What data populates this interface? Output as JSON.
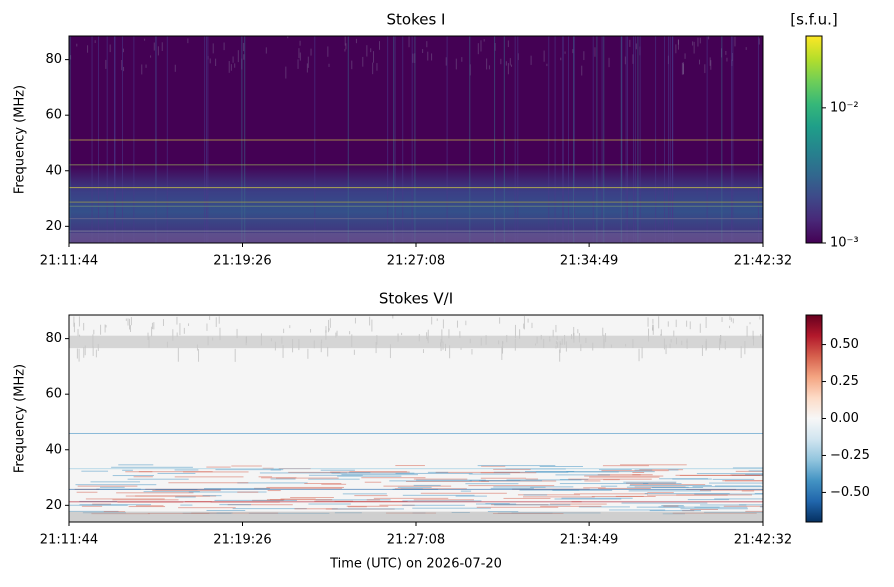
{
  "chart_data": [
    {
      "type": "heatmap",
      "title": "Stokes I",
      "ylabel": "Frequency (MHz)",
      "xlim": [
        76304,
        78152
      ],
      "xticks": [
        {
          "value": 76304,
          "label": "21:11:44"
        },
        {
          "value": 76766,
          "label": "21:19:26"
        },
        {
          "value": 77228,
          "label": "21:27:08"
        },
        {
          "value": 77689,
          "label": "21:34:49"
        },
        {
          "value": 78152,
          "label": "21:42:32"
        }
      ],
      "ylim": [
        14,
        88.5
      ],
      "yticks": [
        20,
        40,
        60,
        80
      ],
      "colorbar": {
        "label": "[s.f.u.]",
        "cmap": "viridis",
        "log": true,
        "clim": [
          0.001,
          0.034
        ],
        "ticks": [
          {
            "value": 0.001,
            "label": "10⁻³"
          },
          {
            "value": 0.01,
            "label": "10⁻²"
          }
        ]
      }
    },
    {
      "type": "heatmap",
      "title": "Stokes V/I",
      "ylabel": "Frequency (MHz)",
      "xlabel": "Time (UTC) on 2026-07-20",
      "xlim": [
        76304,
        78152
      ],
      "xticks": [
        {
          "value": 76304,
          "label": "21:11:44"
        },
        {
          "value": 76766,
          "label": "21:19:26"
        },
        {
          "value": 77228,
          "label": "21:27:08"
        },
        {
          "value": 77689,
          "label": "21:34:49"
        },
        {
          "value": 78152,
          "label": "21:42:32"
        }
      ],
      "ylim": [
        14,
        88.5
      ],
      "yticks": [
        20,
        40,
        60,
        80
      ],
      "colorbar": {
        "cmap": "RdBu_r",
        "log": false,
        "clim": [
          -0.7,
          0.7
        ],
        "ticks": [
          {
            "value": -0.5,
            "label": "−0.50"
          },
          {
            "value": -0.25,
            "label": "−0.25"
          },
          {
            "value": 0,
            "label": "0.00"
          },
          {
            "value": 0.25,
            "label": "0.25"
          },
          {
            "value": 0.5,
            "label": "0.50"
          }
        ]
      }
    }
  ]
}
